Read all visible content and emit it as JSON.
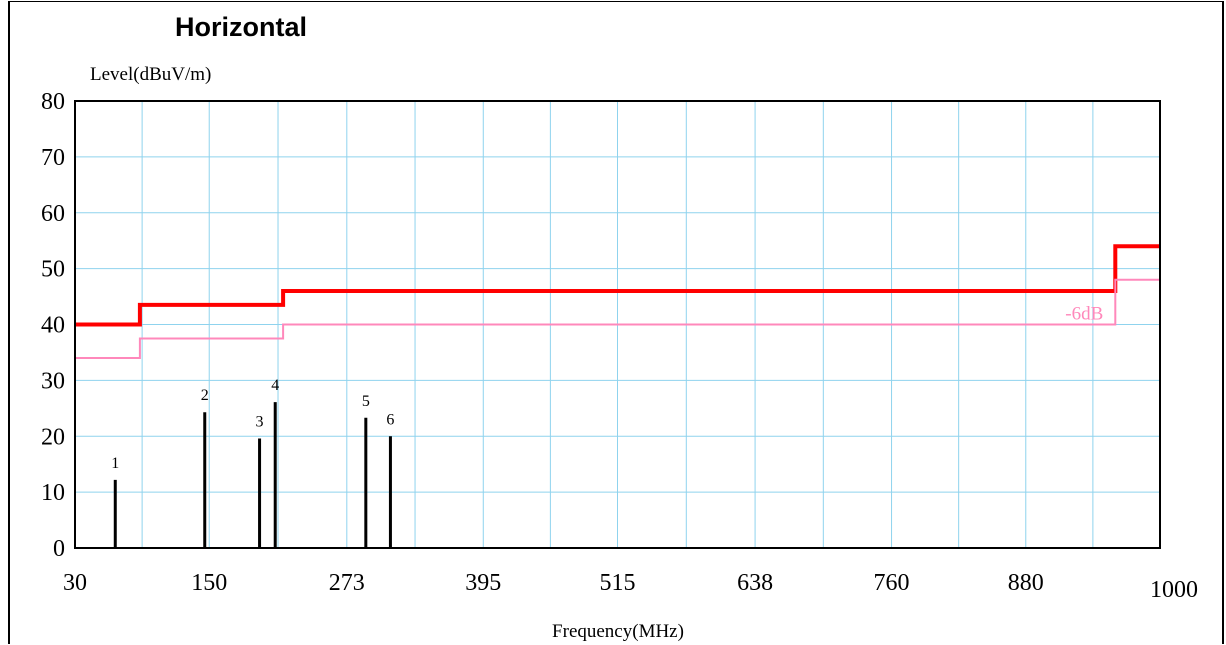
{
  "chart_data": {
    "type": "line",
    "title": "Horizontal",
    "ylabel": "Level(dBuV/m)",
    "xlabel": "Frequency(MHz)",
    "xlim": [
      30,
      1000
    ],
    "ylim": [
      0,
      80
    ],
    "x_ticks": [
      30,
      150,
      273,
      395,
      515,
      638,
      760,
      880,
      1000
    ],
    "y_ticks": [
      0,
      10,
      20,
      30,
      40,
      50,
      60,
      70,
      80
    ],
    "grid": true,
    "colors": {
      "limit": "#ff0000",
      "margin": "#ff88bb",
      "grid": "#8fd3ee",
      "peak": "#000000"
    },
    "series": [
      {
        "key": "limit",
        "points": [
          [
            30,
            40
          ],
          [
            88,
            40
          ],
          [
            88,
            43.5
          ],
          [
            216,
            43.5
          ],
          [
            216,
            46
          ],
          [
            960,
            46
          ],
          [
            960,
            54
          ],
          [
            1000,
            54
          ]
        ]
      },
      {
        "key": "margin",
        "note": "-6dB",
        "points": [
          [
            30,
            34
          ],
          [
            88,
            34
          ],
          [
            88,
            37.5
          ],
          [
            216,
            37.5
          ],
          [
            216,
            40
          ],
          [
            960,
            40
          ],
          [
            960,
            48
          ],
          [
            1000,
            48
          ]
        ]
      }
    ],
    "peaks": [
      {
        "label": "1",
        "x": 66,
        "y": 12.2
      },
      {
        "label": "2",
        "x": 146,
        "y": 24.3
      },
      {
        "label": "3",
        "x": 195,
        "y": 19.6
      },
      {
        "label": "4",
        "x": 209,
        "y": 26.1
      },
      {
        "label": "5",
        "x": 290,
        "y": 23.3
      },
      {
        "label": "6",
        "x": 312,
        "y": 20.0
      }
    ]
  }
}
